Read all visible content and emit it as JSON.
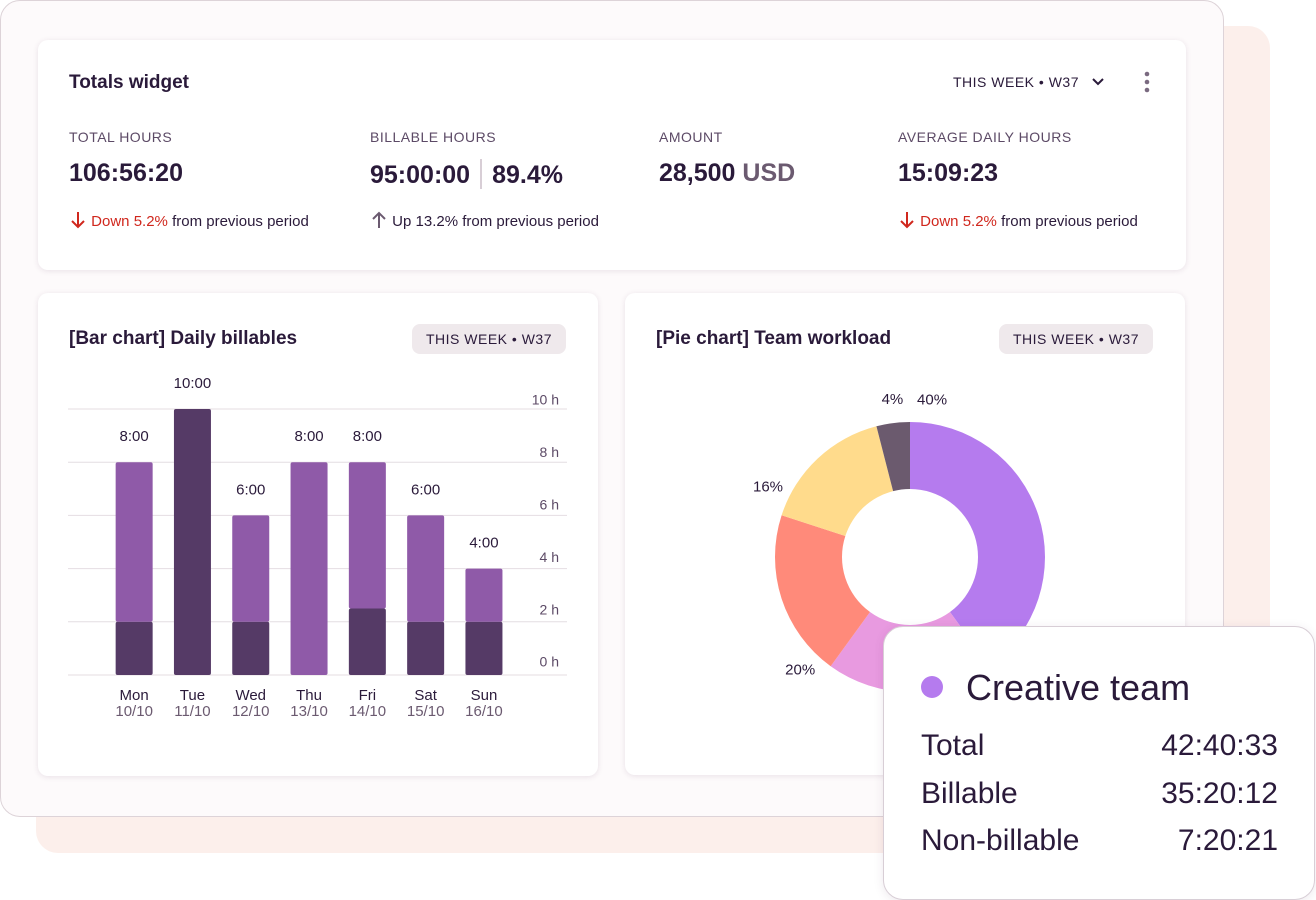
{
  "totals_widget": {
    "title": "Totals widget",
    "period": "THIS WEEK • W37",
    "metrics": [
      {
        "label": "TOTAL HOURS",
        "value": "106:56:20",
        "change": "Down 5.2%",
        "change_rest": "from previous period"
      },
      {
        "label": "BILLABLE HOURS",
        "value": "95:00:00",
        "secondary": "89.4%",
        "change": "Up 13.2% from previous period"
      },
      {
        "label": "AMOUNT",
        "value": "28,500",
        "unit": "USD"
      },
      {
        "label": "AVERAGE DAILY HOURS",
        "value": "15:09:23",
        "change": "Down 5.2%",
        "change_rest": "from previous period"
      }
    ]
  },
  "chart_data": [
    {
      "type": "bar",
      "title": "[Bar chart] Daily billables",
      "badge": "THIS WEEK • W37",
      "categories": [
        "Mon",
        "Tue",
        "Wed",
        "Thu",
        "Fri",
        "Sat",
        "Sun"
      ],
      "dates": [
        "10/10",
        "11/10",
        "12/10",
        "13/10",
        "14/10",
        "15/10",
        "16/10"
      ],
      "series": [
        {
          "color": "#553a66",
          "values": [
            2,
            10,
            2,
            0,
            2.5,
            2,
            2
          ]
        },
        {
          "color": "#8f5aa8",
          "values": [
            6,
            0,
            4,
            8,
            5.5,
            4,
            2
          ]
        }
      ],
      "totals": {
        "values": [
          8,
          10,
          6,
          8,
          8,
          6,
          4
        ],
        "value_labels": [
          "8:00",
          "10:00",
          "6:00",
          "8:00",
          "8:00",
          "6:00",
          "4:00"
        ]
      },
      "ylim": [
        0,
        10
      ],
      "yticks": [
        {
          "value": 0,
          "label": "0 h"
        },
        {
          "value": 2,
          "label": "2 h"
        },
        {
          "value": 4,
          "label": "4 h"
        },
        {
          "value": 6,
          "label": "6 h"
        },
        {
          "value": 8,
          "label": "8 h"
        },
        {
          "value": 10,
          "label": "10 h"
        }
      ],
      "grid": true
    },
    {
      "type": "pie",
      "title": "[Pie chart] Team workload",
      "badge": "THIS WEEK • W37",
      "values": [
        40,
        20,
        20,
        16,
        4
      ],
      "value_labels": [
        "40%",
        null,
        "20%",
        "16%",
        "4%"
      ],
      "colors": [
        "#b57bee",
        "#e89ae0",
        "#ff8a7a",
        "#ffdb8c",
        "#6b5a6e"
      ],
      "donut": true
    }
  ],
  "tooltip": {
    "title": "Creative team",
    "rows": [
      {
        "label": "Total",
        "value": "42:40:33"
      },
      {
        "label": "Billable",
        "value": "35:20:12"
      },
      {
        "label": "Non-billable",
        "value": "7:20:21"
      }
    ]
  }
}
